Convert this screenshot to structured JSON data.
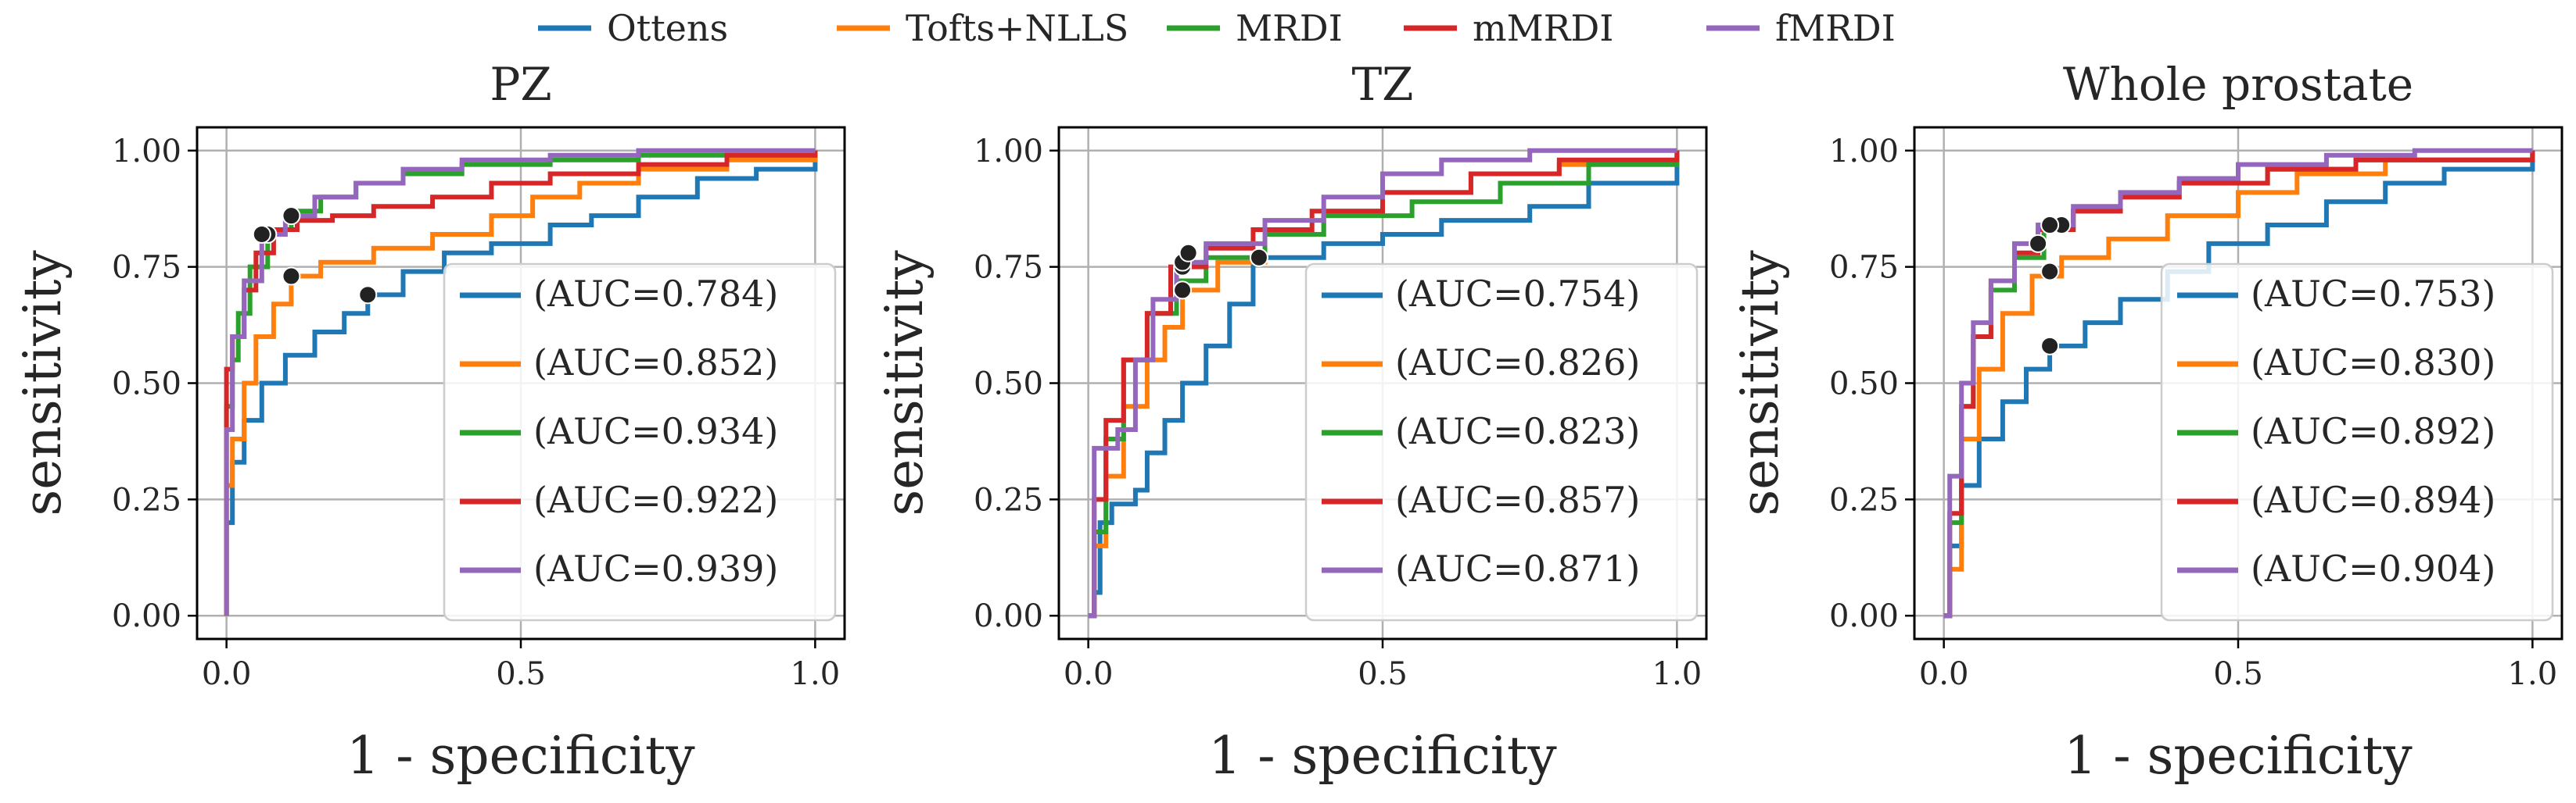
{
  "legend": [
    {
      "name": "Ottens",
      "color": "#1f77b4"
    },
    {
      "name": "Tofts+NLLS",
      "color": "#ff7f0e"
    },
    {
      "name": "MRDI",
      "color": "#2ca02c"
    },
    {
      "name": "mMRDI",
      "color": "#d62728"
    },
    {
      "name": "fMRDI",
      "color": "#9467bd"
    }
  ],
  "chart_data": [
    {
      "type": "line",
      "title": "PZ",
      "xlabel": "1 - specificity",
      "ylabel": "sensitivity",
      "xlim": [
        -0.05,
        1.05
      ],
      "ylim": [
        -0.05,
        1.05
      ],
      "xticks": [
        "0.0",
        "0.5",
        "1.0"
      ],
      "yticks": [
        "0.00",
        "0.25",
        "0.50",
        "0.75",
        "1.00"
      ],
      "grid": true,
      "legend_position": "lower-right",
      "series": [
        {
          "name": "Ottens",
          "legend_label": "(AUC=0.784)",
          "color": "#1f77b4",
          "points": [
            [
              0,
              0
            ],
            [
              0,
              0.2
            ],
            [
              0.01,
              0.33
            ],
            [
              0.03,
              0.42
            ],
            [
              0.06,
              0.5
            ],
            [
              0.1,
              0.56
            ],
            [
              0.15,
              0.61
            ],
            [
              0.2,
              0.65
            ],
            [
              0.24,
              0.69
            ],
            [
              0.3,
              0.74
            ],
            [
              0.37,
              0.78
            ],
            [
              0.45,
              0.8
            ],
            [
              0.55,
              0.84
            ],
            [
              0.62,
              0.86
            ],
            [
              0.7,
              0.9
            ],
            [
              0.8,
              0.94
            ],
            [
              0.9,
              0.96
            ],
            [
              1,
              1
            ]
          ],
          "operating_point": [
            0.24,
            0.69
          ]
        },
        {
          "name": "Tofts+NLLS",
          "legend_label": "(AUC=0.852)",
          "color": "#ff7f0e",
          "points": [
            [
              0,
              0
            ],
            [
              0,
              0.28
            ],
            [
              0.01,
              0.38
            ],
            [
              0.03,
              0.5
            ],
            [
              0.05,
              0.6
            ],
            [
              0.08,
              0.67
            ],
            [
              0.11,
              0.73
            ],
            [
              0.16,
              0.76
            ],
            [
              0.25,
              0.79
            ],
            [
              0.35,
              0.82
            ],
            [
              0.45,
              0.86
            ],
            [
              0.52,
              0.9
            ],
            [
              0.6,
              0.93
            ],
            [
              0.7,
              0.96
            ],
            [
              0.85,
              0.98
            ],
            [
              1,
              1
            ]
          ],
          "operating_point": [
            0.11,
            0.73
          ]
        },
        {
          "name": "MRDI",
          "legend_label": "(AUC=0.934)",
          "color": "#2ca02c",
          "points": [
            [
              0,
              0
            ],
            [
              0,
              0.45
            ],
            [
              0.01,
              0.55
            ],
            [
              0.02,
              0.65
            ],
            [
              0.04,
              0.75
            ],
            [
              0.07,
              0.83
            ],
            [
              0.11,
              0.87
            ],
            [
              0.16,
              0.9
            ],
            [
              0.22,
              0.93
            ],
            [
              0.3,
              0.95
            ],
            [
              0.4,
              0.97
            ],
            [
              0.55,
              0.98
            ],
            [
              0.7,
              0.99
            ],
            [
              1,
              1
            ]
          ],
          "operating_point": [
            0.11,
            0.86
          ]
        },
        {
          "name": "mMRDI",
          "legend_label": "(AUC=0.922)",
          "color": "#d62728",
          "points": [
            [
              0,
              0
            ],
            [
              0,
              0.53
            ],
            [
              0.01,
              0.6
            ],
            [
              0.03,
              0.7
            ],
            [
              0.05,
              0.78
            ],
            [
              0.08,
              0.83
            ],
            [
              0.12,
              0.85
            ],
            [
              0.18,
              0.86
            ],
            [
              0.25,
              0.88
            ],
            [
              0.35,
              0.9
            ],
            [
              0.45,
              0.93
            ],
            [
              0.55,
              0.95
            ],
            [
              0.7,
              0.97
            ],
            [
              0.85,
              0.99
            ],
            [
              1,
              1
            ]
          ],
          "operating_point": [
            0.07,
            0.82
          ]
        },
        {
          "name": "fMRDI",
          "legend_label": "(AUC=0.939)",
          "color": "#9467bd",
          "points": [
            [
              0,
              0
            ],
            [
              0,
              0.4
            ],
            [
              0.01,
              0.6
            ],
            [
              0.03,
              0.72
            ],
            [
              0.06,
              0.82
            ],
            [
              0.1,
              0.86
            ],
            [
              0.15,
              0.9
            ],
            [
              0.22,
              0.93
            ],
            [
              0.3,
              0.96
            ],
            [
              0.4,
              0.98
            ],
            [
              0.55,
              0.99
            ],
            [
              0.7,
              1
            ],
            [
              1,
              1
            ]
          ],
          "operating_point": [
            0.06,
            0.82
          ]
        }
      ]
    },
    {
      "type": "line",
      "title": "TZ",
      "xlabel": "1 - specificity",
      "ylabel": "sensitivity",
      "xlim": [
        -0.05,
        1.05
      ],
      "ylim": [
        -0.05,
        1.05
      ],
      "xticks": [
        "0.0",
        "0.5",
        "1.0"
      ],
      "yticks": [
        "0.00",
        "0.25",
        "0.50",
        "0.75",
        "1.00"
      ],
      "grid": true,
      "legend_position": "lower-right",
      "series": [
        {
          "name": "Ottens",
          "legend_label": "(AUC=0.754)",
          "color": "#1f77b4",
          "points": [
            [
              0,
              0
            ],
            [
              0.01,
              0.05
            ],
            [
              0.02,
              0.2
            ],
            [
              0.04,
              0.24
            ],
            [
              0.08,
              0.27
            ],
            [
              0.1,
              0.35
            ],
            [
              0.13,
              0.42
            ],
            [
              0.16,
              0.5
            ],
            [
              0.2,
              0.58
            ],
            [
              0.24,
              0.67
            ],
            [
              0.28,
              0.77
            ],
            [
              0.4,
              0.8
            ],
            [
              0.5,
              0.82
            ],
            [
              0.6,
              0.85
            ],
            [
              0.75,
              0.88
            ],
            [
              0.85,
              0.93
            ],
            [
              1,
              1
            ]
          ],
          "operating_point": [
            0.29,
            0.77
          ]
        },
        {
          "name": "Tofts+NLLS",
          "legend_label": "(AUC=0.826)",
          "color": "#ff7f0e",
          "points": [
            [
              0,
              0
            ],
            [
              0.01,
              0.15
            ],
            [
              0.03,
              0.3
            ],
            [
              0.06,
              0.45
            ],
            [
              0.1,
              0.55
            ],
            [
              0.13,
              0.62
            ],
            [
              0.16,
              0.7
            ],
            [
              0.22,
              0.76
            ],
            [
              0.3,
              0.82
            ],
            [
              0.4,
              0.87
            ],
            [
              0.5,
              0.91
            ],
            [
              0.65,
              0.95
            ],
            [
              0.8,
              0.97
            ],
            [
              1,
              1
            ]
          ],
          "operating_point": [
            0.16,
            0.7
          ]
        },
        {
          "name": "MRDI",
          "legend_label": "(AUC=0.823)",
          "color": "#2ca02c",
          "points": [
            [
              0,
              0
            ],
            [
              0.01,
              0.18
            ],
            [
              0.03,
              0.38
            ],
            [
              0.06,
              0.55
            ],
            [
              0.1,
              0.65
            ],
            [
              0.15,
              0.72
            ],
            [
              0.2,
              0.77
            ],
            [
              0.3,
              0.82
            ],
            [
              0.4,
              0.86
            ],
            [
              0.55,
              0.89
            ],
            [
              0.7,
              0.93
            ],
            [
              0.85,
              0.97
            ],
            [
              1,
              1
            ]
          ],
          "operating_point": [
            0.16,
            0.75
          ]
        },
        {
          "name": "mMRDI",
          "legend_label": "(AUC=0.857)",
          "color": "#d62728",
          "points": [
            [
              0,
              0
            ],
            [
              0.01,
              0.25
            ],
            [
              0.03,
              0.42
            ],
            [
              0.06,
              0.55
            ],
            [
              0.1,
              0.65
            ],
            [
              0.14,
              0.75
            ],
            [
              0.2,
              0.79
            ],
            [
              0.28,
              0.83
            ],
            [
              0.38,
              0.87
            ],
            [
              0.5,
              0.91
            ],
            [
              0.65,
              0.95
            ],
            [
              0.8,
              0.98
            ],
            [
              1,
              1
            ]
          ],
          "operating_point": [
            0.16,
            0.76
          ]
        },
        {
          "name": "fMRDI",
          "legend_label": "(AUC=0.871)",
          "color": "#9467bd",
          "points": [
            [
              0,
              0
            ],
            [
              0.01,
              0.36
            ],
            [
              0.05,
              0.4
            ],
            [
              0.08,
              0.55
            ],
            [
              0.11,
              0.68
            ],
            [
              0.15,
              0.76
            ],
            [
              0.2,
              0.8
            ],
            [
              0.3,
              0.85
            ],
            [
              0.4,
              0.9
            ],
            [
              0.5,
              0.95
            ],
            [
              0.6,
              0.98
            ],
            [
              0.75,
              1
            ],
            [
              1,
              1
            ]
          ],
          "operating_point": [
            0.17,
            0.78
          ]
        }
      ]
    },
    {
      "type": "line",
      "title": "Whole prostate",
      "xlabel": "1 - specificity",
      "ylabel": "sensitivity",
      "xlim": [
        -0.05,
        1.05
      ],
      "ylim": [
        -0.05,
        1.05
      ],
      "xticks": [
        "0.0",
        "0.5",
        "1.0"
      ],
      "yticks": [
        "0.00",
        "0.25",
        "0.50",
        "0.75",
        "1.00"
      ],
      "grid": true,
      "legend_position": "lower-right",
      "series": [
        {
          "name": "Ottens",
          "legend_label": "(AUC=0.753)",
          "color": "#1f77b4",
          "points": [
            [
              0,
              0
            ],
            [
              0.01,
              0.15
            ],
            [
              0.03,
              0.28
            ],
            [
              0.06,
              0.38
            ],
            [
              0.1,
              0.46
            ],
            [
              0.14,
              0.53
            ],
            [
              0.18,
              0.58
            ],
            [
              0.24,
              0.63
            ],
            [
              0.3,
              0.68
            ],
            [
              0.38,
              0.74
            ],
            [
              0.45,
              0.8
            ],
            [
              0.55,
              0.84
            ],
            [
              0.65,
              0.89
            ],
            [
              0.75,
              0.93
            ],
            [
              0.85,
              0.96
            ],
            [
              1,
              1
            ]
          ],
          "operating_point": [
            0.18,
            0.58
          ]
        },
        {
          "name": "Tofts+NLLS",
          "legend_label": "(AUC=0.830)",
          "color": "#ff7f0e",
          "points": [
            [
              0,
              0
            ],
            [
              0.01,
              0.1
            ],
            [
              0.03,
              0.38
            ],
            [
              0.06,
              0.53
            ],
            [
              0.1,
              0.65
            ],
            [
              0.15,
              0.73
            ],
            [
              0.2,
              0.77
            ],
            [
              0.28,
              0.81
            ],
            [
              0.38,
              0.86
            ],
            [
              0.5,
              0.91
            ],
            [
              0.6,
              0.95
            ],
            [
              0.75,
              0.98
            ],
            [
              1,
              1
            ]
          ],
          "operating_point": [
            0.18,
            0.74
          ]
        },
        {
          "name": "MRDI",
          "legend_label": "(AUC=0.892)",
          "color": "#2ca02c",
          "points": [
            [
              0,
              0
            ],
            [
              0.01,
              0.2
            ],
            [
              0.03,
              0.45
            ],
            [
              0.05,
              0.6
            ],
            [
              0.08,
              0.7
            ],
            [
              0.12,
              0.77
            ],
            [
              0.17,
              0.83
            ],
            [
              0.22,
              0.87
            ],
            [
              0.3,
              0.9
            ],
            [
              0.4,
              0.93
            ],
            [
              0.55,
              0.96
            ],
            [
              0.7,
              0.98
            ],
            [
              1,
              1
            ]
          ],
          "operating_point": [
            0.2,
            0.84
          ]
        },
        {
          "name": "mMRDI",
          "legend_label": "(AUC=0.894)",
          "color": "#d62728",
          "points": [
            [
              0,
              0
            ],
            [
              0.01,
              0.22
            ],
            [
              0.03,
              0.45
            ],
            [
              0.05,
              0.6
            ],
            [
              0.08,
              0.72
            ],
            [
              0.12,
              0.78
            ],
            [
              0.16,
              0.83
            ],
            [
              0.22,
              0.87
            ],
            [
              0.3,
              0.9
            ],
            [
              0.4,
              0.93
            ],
            [
              0.55,
              0.96
            ],
            [
              0.7,
              0.98
            ],
            [
              1,
              1
            ]
          ],
          "operating_point": [
            0.18,
            0.84
          ]
        },
        {
          "name": "fMRDI",
          "legend_label": "(AUC=0.904)",
          "color": "#9467bd",
          "points": [
            [
              0,
              0
            ],
            [
              0.01,
              0.3
            ],
            [
              0.03,
              0.5
            ],
            [
              0.05,
              0.63
            ],
            [
              0.08,
              0.72
            ],
            [
              0.12,
              0.8
            ],
            [
              0.16,
              0.84
            ],
            [
              0.22,
              0.88
            ],
            [
              0.3,
              0.91
            ],
            [
              0.4,
              0.94
            ],
            [
              0.5,
              0.97
            ],
            [
              0.65,
              0.99
            ],
            [
              0.8,
              1
            ],
            [
              1,
              1
            ]
          ],
          "operating_point": [
            0.16,
            0.8
          ]
        }
      ]
    }
  ]
}
